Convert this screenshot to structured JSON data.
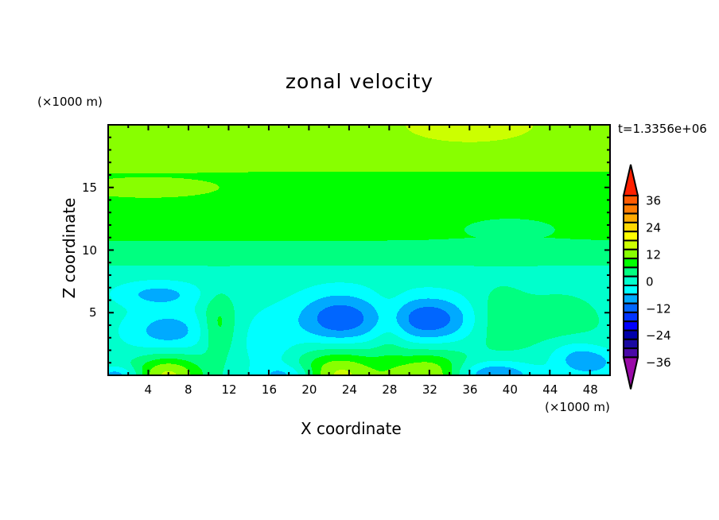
{
  "chart_data": {
    "type": "heatmap",
    "subtype": "filled-contour",
    "title": "zonal velocity",
    "xlabel": "X coordinate",
    "ylabel": "Z coordinate",
    "x_unit": "(×1000 m)",
    "y_unit": "(×1000 m)",
    "time_label": "t=1.3356e+06",
    "xlim": [
      0,
      50
    ],
    "ylim": [
      0,
      20
    ],
    "xticks": [
      4,
      8,
      12,
      16,
      20,
      24,
      28,
      32,
      36,
      40,
      44,
      48
    ],
    "yticks": [
      5,
      10,
      15
    ],
    "levels": [
      -36,
      -32,
      -28,
      -24,
      -20,
      -16,
      -12,
      -8,
      -4,
      0,
      4,
      8,
      12,
      16,
      20,
      24,
      28,
      32,
      36
    ],
    "colorbar_labels": [
      36,
      24,
      12,
      0,
      -12,
      -24,
      -36
    ],
    "colors": [
      "#9a0aa8",
      "#4a0aa8",
      "#1a0aa0",
      "#0000aa",
      "#0000ff",
      "#0033ff",
      "#0066ff",
      "#00aaff",
      "#00ffff",
      "#00ffcc",
      "#00ff80",
      "#00ff00",
      "#88ff00",
      "#ccff00",
      "#ffff00",
      "#ffd800",
      "#ffaa00",
      "#ff7c00",
      "#ff5a00",
      "#ff2000",
      "#ff3030",
      "#ffaaaa"
    ],
    "background_profile": [
      [
        0,
        -2
      ],
      [
        8.5,
        -2
      ],
      [
        9,
        2
      ],
      [
        10.5,
        2
      ],
      [
        11,
        6
      ],
      [
        16,
        6
      ],
      [
        16.5,
        10
      ],
      [
        20,
        10
      ]
    ],
    "anomalies": [
      {
        "x": 36,
        "z": 20,
        "sx": 6,
        "sz": 1.3,
        "amp": 3.5
      },
      {
        "x": 4,
        "z": 15,
        "sx": 6,
        "sz": 0.7,
        "amp": 4
      },
      {
        "x": 40,
        "z": 11.6,
        "sx": 5,
        "sz": 1,
        "amp": -3
      },
      {
        "x": 6,
        "z": 3.5,
        "sx": 3,
        "sz": 1.3,
        "amp": -8
      },
      {
        "x": 5,
        "z": 6.5,
        "sx": 3,
        "sz": 0.7,
        "amp": -7
      },
      {
        "x": 23,
        "z": 4.5,
        "sx": 3,
        "sz": 1.5,
        "amp": -13
      },
      {
        "x": 32,
        "z": 4.5,
        "sx": 3,
        "sz": 1.3,
        "amp": -13
      },
      {
        "x": 11,
        "z": 4,
        "sx": 1.2,
        "sz": 1.8,
        "amp": 8
      },
      {
        "x": 28,
        "z": 4,
        "sx": 1.2,
        "sz": 2,
        "amp": 4
      },
      {
        "x": 39,
        "z": 4.5,
        "sx": 2,
        "sz": 2,
        "amp": 4.5
      },
      {
        "x": 45,
        "z": 4,
        "sx": 3,
        "sz": 1.8,
        "amp": 5
      },
      {
        "x": 46,
        "z": 2,
        "sx": 2,
        "sz": 1,
        "amp": -5
      },
      {
        "x": 6,
        "z": 0,
        "sx": 2.5,
        "sz": 1.2,
        "amp": 15
      },
      {
        "x": 23,
        "z": 0,
        "sx": 3,
        "sz": 1.5,
        "amp": 15
      },
      {
        "x": 32,
        "z": 0,
        "sx": 3,
        "sz": 1.3,
        "amp": 15
      },
      {
        "x": 1,
        "z": 0,
        "sx": 1.5,
        "sz": 0.5,
        "amp": -9
      },
      {
        "x": 18,
        "z": 0,
        "sx": 2,
        "sz": 0.6,
        "amp": -8
      },
      {
        "x": 38,
        "z": 0,
        "sx": 3,
        "sz": 0.8,
        "amp": -12
      },
      {
        "x": 16,
        "z": 2.5,
        "sx": 2,
        "sz": 2,
        "amp": -4
      },
      {
        "x": 48,
        "z": 1,
        "sx": 2,
        "sz": 0.8,
        "amp": -8
      }
    ]
  }
}
